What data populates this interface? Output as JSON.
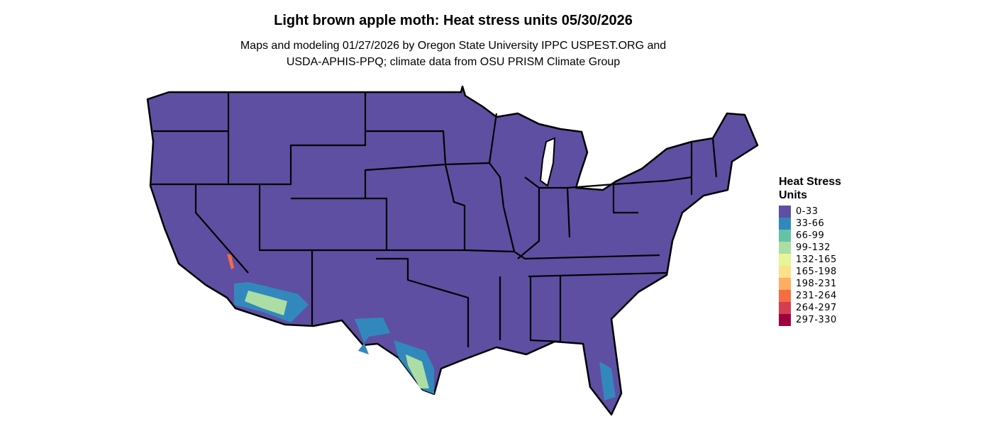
{
  "title": "Light brown apple moth: Heat stress units 05/30/2026",
  "subtitle_line1": "Maps and modeling 01/27/2026 by Oregon State University IPPC USPEST.ORG and",
  "subtitle_line2": "USDA-APHIS-PPQ; climate data from OSU PRISM Climate Group",
  "legend": {
    "title": "Heat Stress Units",
    "items": [
      {
        "label": "0-33",
        "color": "#5E4FA2"
      },
      {
        "label": "33-66",
        "color": "#3288BD"
      },
      {
        "label": "66-99",
        "color": "#66C2A5"
      },
      {
        "label": "99-132",
        "color": "#ABDDA4"
      },
      {
        "label": "132-165",
        "color": "#E6F598"
      },
      {
        "label": "165-198",
        "color": "#FEE08B"
      },
      {
        "label": "198-231",
        "color": "#FDAE61"
      },
      {
        "label": "231-264",
        "color": "#F46D43"
      },
      {
        "label": "264-297",
        "color": "#D53E4F"
      },
      {
        "label": "297-330",
        "color": "#9E0142"
      }
    ]
  },
  "map": {
    "region": "Contiguous United States",
    "base_color": "#5E4FA2",
    "border_color": "#000000",
    "elevated_areas": [
      "Southern California desert",
      "Southern Arizona",
      "West Texas",
      "South Texas",
      "South Florida"
    ]
  }
}
